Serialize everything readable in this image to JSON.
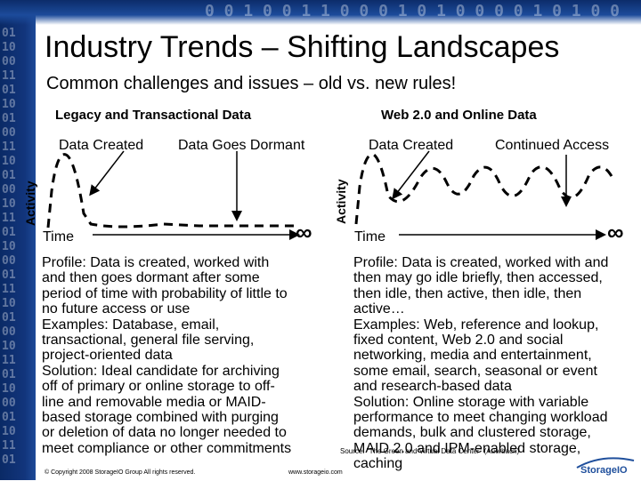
{
  "slide": {
    "title": "Industry Trends – Shifting Landscapes",
    "subtitle": "Common challenges and issues – old vs. new rules!"
  },
  "left_panel": {
    "heading": "Legacy and Transactional Data",
    "label_created": "Data Created",
    "label_dormant": "Data Goes Dormant",
    "axis_y": "Activity",
    "axis_x": "Time",
    "infinity": "∞",
    "profile_lines": [
      "Profile: Data is created, worked with",
      "and then goes dormant after some",
      "period of time with probability of little to",
      "no future access or use",
      "Examples: Database, email,",
      "transactional, general file serving,",
      "project-oriented data",
      "Solution: Ideal candidate for archiving",
      "off of primary or online storage to off-",
      "line and removable media or MAID-",
      "based storage combined with purging",
      "or deletion of data no longer needed to",
      "meet compliance or other commitments"
    ]
  },
  "right_panel": {
    "heading": "Web 2.0 and Online Data",
    "label_created": "Data Created",
    "label_access": "Continued Access",
    "axis_y": "Activity",
    "axis_x": "Time",
    "infinity": "∞",
    "profile_lines": [
      "Profile: Data is created, worked with and",
      "then may go idle briefly, then accessed,",
      "then idle, then active, then idle, then",
      "active…",
      "Examples: Web, reference and lookup,",
      "fixed content, Web 2.0 and social",
      "networking, media and entertainment,",
      "some email, search, seasonal or event",
      "and research-based data",
      "Solution: Online storage with variable",
      "performance to meet changing workload",
      "demands, bulk and clustered storage,",
      "MAID 2.0 and IPM-enabled storage,",
      "caching"
    ]
  },
  "footer": {
    "copyright": "© Copyright 2008 StorageIO Group All rights reserved.",
    "website": "www.storageio.com",
    "source": "Source: \"The Green and Virtual Data Center\" (Auerbach)",
    "logo_text": "StorageIO"
  },
  "colors": {
    "banner_dark": "#0c2c6a",
    "banner_light": "#1d4a98",
    "logo_blue": "#1f4f9c"
  }
}
